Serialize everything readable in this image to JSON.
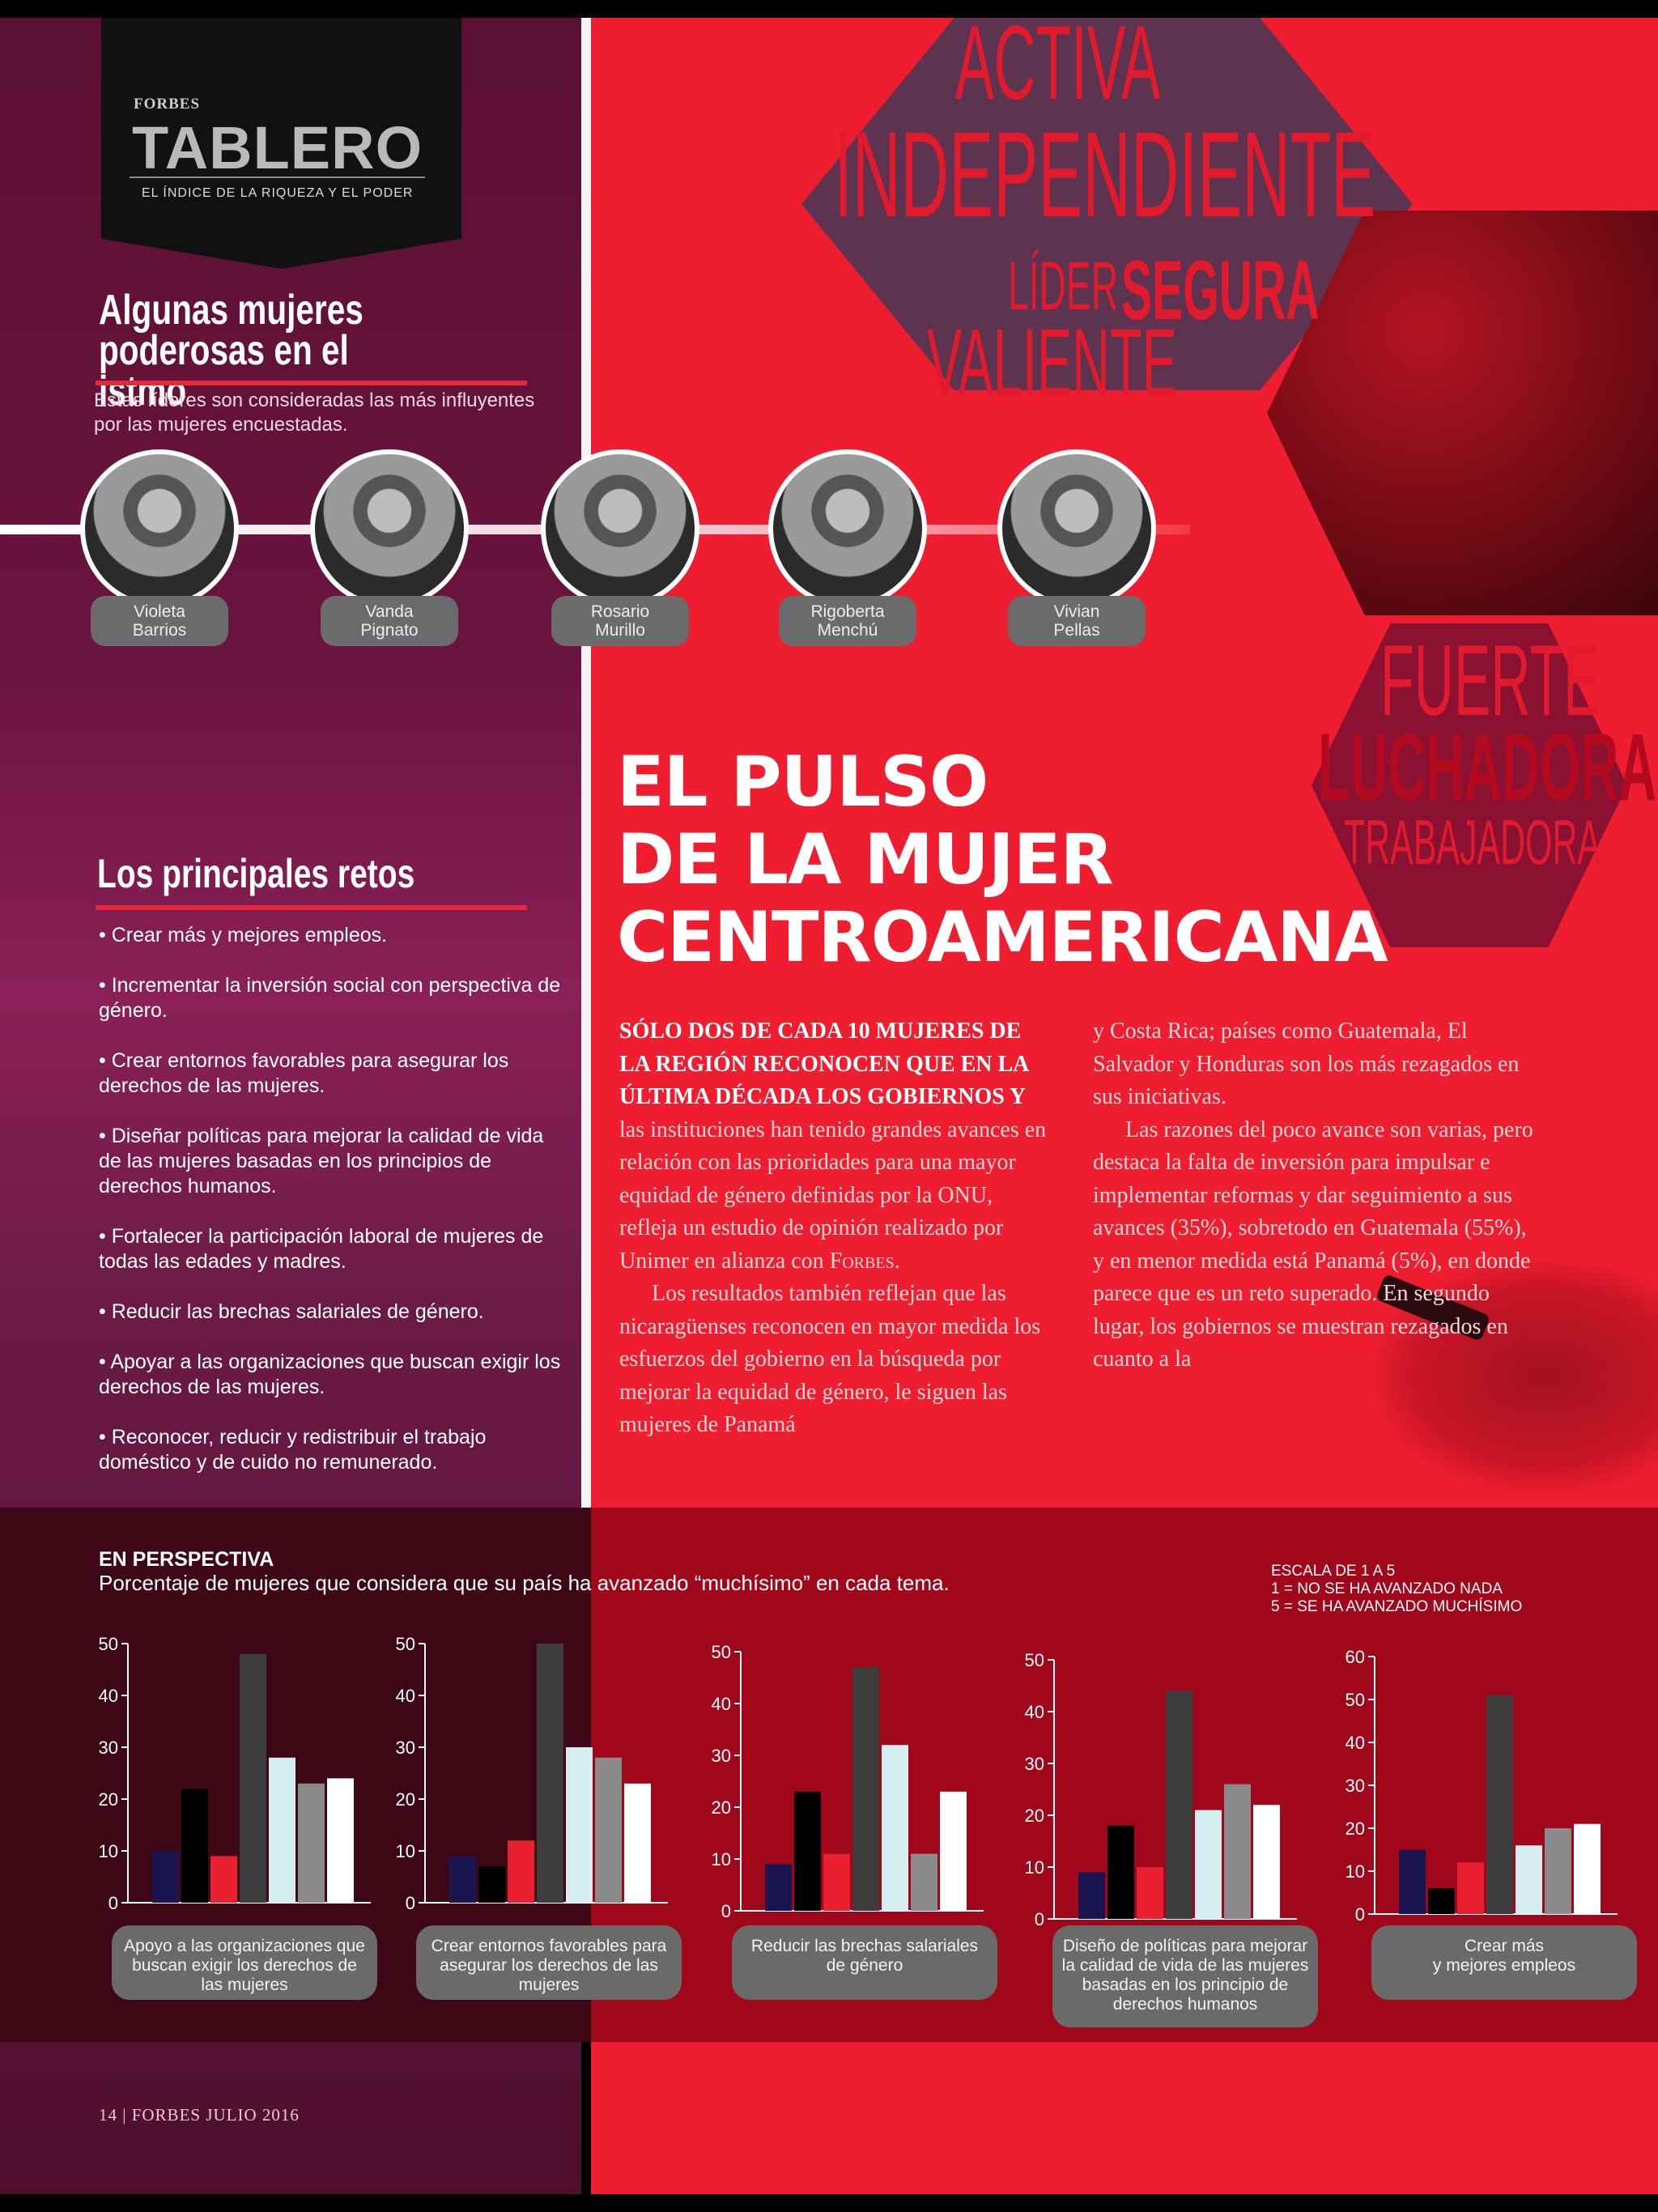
{
  "badge": {
    "brand": "FORBES",
    "title": "TABLERO",
    "subtitle": "EL ÍNDICE DE LA RIQUEZA Y EL PODER"
  },
  "leaders": {
    "title": "Algunas mujeres poderosas en el istmo",
    "description": "Estas líderes son consideradas las más influyentes por   las mujeres encuestadas.",
    "people": [
      {
        "name": "Violeta\nBarrios"
      },
      {
        "name": "Vanda\nPignato"
      },
      {
        "name": "Rosario\nMurillo"
      },
      {
        "name": "Rigoberta\nMenchú"
      },
      {
        "name": "Vivian\nPellas"
      }
    ]
  },
  "words": {
    "activa": "ACTIVA",
    "independiente": "INDEPENDIENTE",
    "lider": "LÍDER",
    "segura": "SEGURA",
    "valiente": "VALIENTE",
    "fuerte": "FUERTE",
    "luchadora": "LUCHADORA",
    "trabajadora": "TRABAJADORA"
  },
  "headline": {
    "line1": "EL PULSO",
    "line2": "DE LA MUJER",
    "line3": "CENTROAMERICANA"
  },
  "article": {
    "lead": "SÓLO DOS DE CADA 10 MUJERES DE LA REGIÓN RECONOCEN QUE EN LA ÚLTIMA DÉCADA LOS GOBIERNOS Y",
    "p1_rest": " las instituciones han tenido grandes avances en relación con las prioridades para una mayor equidad de género definidas por la ONU, refleja un estudio de opinión realizado por Unimer en alianza con ",
    "forbes": "Forbes",
    "p1_end": ".",
    "p2": "Los resultados también reflejan que las nicaragüenses reconocen en mayor medida los esfuerzos del gobierno en la búsqueda por mejorar la equidad de género, le siguen las mujeres de Panamá",
    "p2_cont": "y Costa Rica; países como Guatemala, El Salvador y Honduras son los más rezagados en sus iniciativas.",
    "p3": "Las razones del poco avance son varias, pero destaca la falta de inversión para impulsar e implementar reformas y dar seguimiento a sus avances (35%), sobretodo en Guatemala (55%), y en menor medida está Panamá (5%), en donde parece que es un reto superado. En segundo lugar, los gobiernos se muestran rezagados en cuanto a la"
  },
  "retos": {
    "title": "Los principales retos",
    "items": [
      "• Crear más y mejores empleos.",
      "• Incrementar la inversión social con perspectiva de género.",
      "• Crear entornos favorables para asegurar los derechos de las mujeres.",
      "• Diseñar políticas para mejorar la calidad de vida de las mujeres basadas en los principios de derechos humanos.",
      "• Fortalecer la participación laboral de mujeres de todas las edades y madres.",
      "• Reducir las brechas salariales de género.",
      "• Apoyar a las organizaciones que buscan exigir los derechos de las mujeres.",
      "• Reconocer, reducir y redistribuir el trabajo doméstico y de cuido no remunerado."
    ]
  },
  "perspective": {
    "title": "EN PERSPECTIVA",
    "subtitle": "Porcentaje de mujeres que considera que su país ha avanzado “muchísimo” en cada tema.",
    "scale_title": "ESCALA  DE 1 A 5",
    "scale_1": "1 = NO SE HA AVANZADO NADA",
    "scale_5": "5 = SE HA AVANZADO MUCHÍSIMO"
  },
  "chart_data": [
    {
      "type": "bar",
      "title": "Apoyo a las organizaciones que buscan exigir los derechos de las mujeres",
      "categories": [
        "",
        "",
        "",
        "",
        "",
        "",
        ""
      ],
      "values": [
        10,
        22,
        9,
        48,
        28,
        23,
        24
      ],
      "ylim": [
        0,
        50
      ],
      "yticks": [
        0,
        10,
        20,
        30,
        40,
        50
      ],
      "colors": [
        "#1a1550",
        "#000000",
        "#e8202f",
        "#3d3d3d",
        "#d6eef2",
        "#8a8a8a",
        "#ffffff"
      ]
    },
    {
      "type": "bar",
      "title": "Crear entornos favorables para asegurar los derechos de las mujeres",
      "categories": [
        "",
        "",
        "",
        "",
        "",
        "",
        ""
      ],
      "values": [
        9,
        7,
        12,
        50,
        30,
        28,
        23
      ],
      "ylim": [
        0,
        50
      ],
      "yticks": [
        0,
        10,
        20,
        30,
        40,
        50
      ],
      "colors": [
        "#1a1550",
        "#000000",
        "#e8202f",
        "#3d3d3d",
        "#d6eef2",
        "#8a8a8a",
        "#ffffff"
      ]
    },
    {
      "type": "bar",
      "title": "Reducir las brechas salariales de género",
      "categories": [
        "",
        "",
        "",
        "",
        "",
        "",
        ""
      ],
      "values": [
        9,
        23,
        11,
        47,
        32,
        11,
        23
      ],
      "ylim": [
        0,
        50
      ],
      "yticks": [
        0,
        10,
        20,
        30,
        40,
        50
      ],
      "colors": [
        "#1a1550",
        "#000000",
        "#e8202f",
        "#3d3d3d",
        "#d6eef2",
        "#8a8a8a",
        "#ffffff"
      ]
    },
    {
      "type": "bar",
      "title": "Diseño de políticas para mejorar la calidad de vida de las mujeres basadas en los principio de derechos humanos",
      "categories": [
        "",
        "",
        "",
        "",
        "",
        "",
        ""
      ],
      "values": [
        9,
        18,
        10,
        44,
        21,
        26,
        22
      ],
      "ylim": [
        0,
        50
      ],
      "yticks": [
        0,
        10,
        20,
        30,
        40,
        50
      ],
      "colors": [
        "#1a1550",
        "#000000",
        "#e8202f",
        "#3d3d3d",
        "#d6eef2",
        "#8a8a8a",
        "#ffffff"
      ]
    },
    {
      "type": "bar",
      "title": "Crear más y mejores empleos",
      "categories": [
        "",
        "",
        "",
        "",
        "",
        "",
        ""
      ],
      "values": [
        15,
        6,
        12,
        51,
        16,
        20,
        21
      ],
      "ylim": [
        0,
        60
      ],
      "yticks": [
        0,
        10,
        20,
        30,
        40,
        50,
        60
      ],
      "colors": [
        "#1a1550",
        "#000000",
        "#e8202f",
        "#3d3d3d",
        "#d6eef2",
        "#8a8a8a",
        "#ffffff"
      ]
    }
  ],
  "chart_labels": [
    "Apoyo a las organizaciones que buscan exigir los derechos de las mujeres",
    "Crear entornos favorables para asegurar los derechos de las mujeres",
    "Reducir las brechas salariales de género",
    "Diseño de políticas para mejorar la calidad de vida de las mujeres basadas en los principio de derechos humanos",
    "Crear más\ny mejores empleos"
  ],
  "footer": "14  |  FORBES   JULIO 2016"
}
